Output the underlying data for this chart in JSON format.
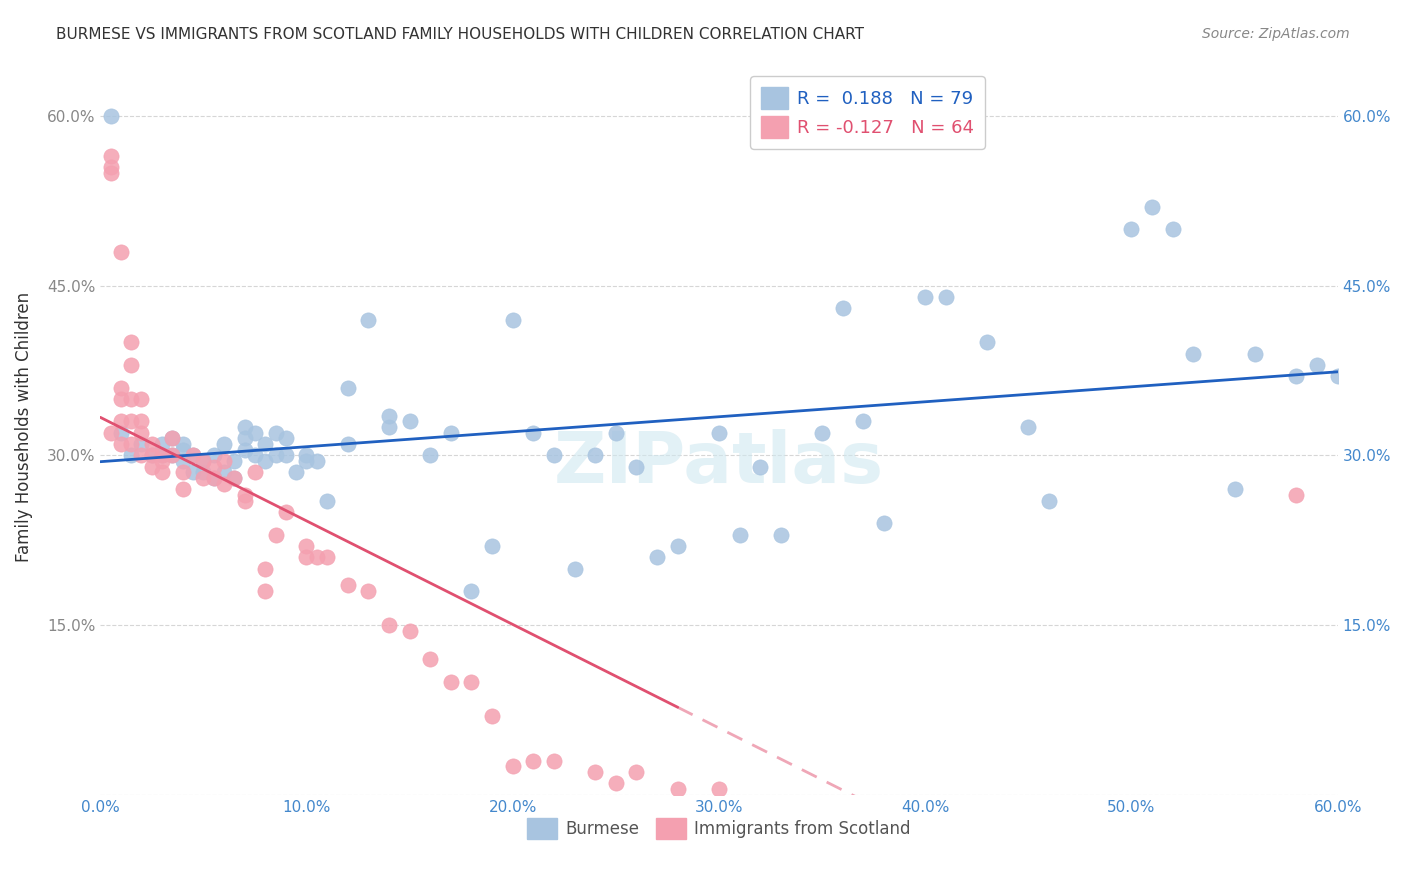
{
  "title": "BURMESE VS IMMIGRANTS FROM SCOTLAND FAMILY HOUSEHOLDS WITH CHILDREN CORRELATION CHART",
  "source": "Source: ZipAtlas.com",
  "xlabel_bottom": "",
  "ylabel": "Family Households with Children",
  "x_ticks": [
    0.0,
    0.1,
    0.2,
    0.3,
    0.4,
    0.5,
    0.6
  ],
  "x_tick_labels": [
    "0.0%",
    "10.0%",
    "20.0%",
    "30.0%",
    "40.0%",
    "50.0%",
    "60.0%"
  ],
  "y_ticks": [
    0.0,
    0.15,
    0.3,
    0.45,
    0.6
  ],
  "y_tick_labels_left": [
    "",
    "15.0%",
    "30.0%",
    "45.0%",
    "60.0%"
  ],
  "y_tick_labels_right": [
    "",
    "15.0%",
    "30.0%",
    "45.0%",
    "60.0%"
  ],
  "xlim": [
    0.0,
    0.6
  ],
  "ylim": [
    0.0,
    0.65
  ],
  "blue_R": 0.188,
  "blue_N": 79,
  "pink_R": -0.127,
  "pink_N": 64,
  "blue_color": "#a8c4e0",
  "pink_color": "#f4a0b0",
  "blue_line_color": "#2060c0",
  "pink_line_color": "#e05070",
  "watermark": "ZIPatlas",
  "legend_label_blue": "Burmese",
  "legend_label_pink": "Immigrants from Scotland",
  "blue_scatter_x": [
    0.005,
    0.01,
    0.015,
    0.02,
    0.025,
    0.03,
    0.03,
    0.035,
    0.035,
    0.04,
    0.04,
    0.04,
    0.045,
    0.045,
    0.05,
    0.05,
    0.055,
    0.055,
    0.06,
    0.06,
    0.065,
    0.065,
    0.07,
    0.07,
    0.07,
    0.075,
    0.075,
    0.08,
    0.08,
    0.085,
    0.085,
    0.09,
    0.09,
    0.095,
    0.1,
    0.1,
    0.105,
    0.11,
    0.12,
    0.12,
    0.13,
    0.14,
    0.14,
    0.15,
    0.16,
    0.17,
    0.18,
    0.19,
    0.2,
    0.21,
    0.22,
    0.23,
    0.24,
    0.25,
    0.26,
    0.27,
    0.28,
    0.3,
    0.31,
    0.32,
    0.33,
    0.35,
    0.36,
    0.37,
    0.38,
    0.4,
    0.41,
    0.43,
    0.45,
    0.46,
    0.5,
    0.51,
    0.52,
    0.53,
    0.55,
    0.56,
    0.58,
    0.59,
    0.6
  ],
  "blue_scatter_y": [
    0.6,
    0.32,
    0.3,
    0.31,
    0.3,
    0.3,
    0.31,
    0.3,
    0.315,
    0.295,
    0.31,
    0.305,
    0.285,
    0.3,
    0.285,
    0.295,
    0.28,
    0.3,
    0.31,
    0.285,
    0.295,
    0.28,
    0.325,
    0.315,
    0.305,
    0.32,
    0.3,
    0.295,
    0.31,
    0.32,
    0.3,
    0.315,
    0.3,
    0.285,
    0.3,
    0.295,
    0.295,
    0.26,
    0.36,
    0.31,
    0.42,
    0.325,
    0.335,
    0.33,
    0.3,
    0.32,
    0.18,
    0.22,
    0.42,
    0.32,
    0.3,
    0.2,
    0.3,
    0.32,
    0.29,
    0.21,
    0.22,
    0.32,
    0.23,
    0.29,
    0.23,
    0.32,
    0.43,
    0.33,
    0.24,
    0.44,
    0.44,
    0.4,
    0.325,
    0.26,
    0.5,
    0.52,
    0.5,
    0.39,
    0.27,
    0.39,
    0.37,
    0.38,
    0.37
  ],
  "pink_scatter_x": [
    0.005,
    0.005,
    0.005,
    0.005,
    0.01,
    0.01,
    0.01,
    0.01,
    0.01,
    0.015,
    0.015,
    0.015,
    0.015,
    0.015,
    0.02,
    0.02,
    0.02,
    0.02,
    0.025,
    0.025,
    0.025,
    0.03,
    0.03,
    0.03,
    0.035,
    0.035,
    0.04,
    0.04,
    0.045,
    0.05,
    0.05,
    0.055,
    0.055,
    0.06,
    0.06,
    0.065,
    0.07,
    0.07,
    0.075,
    0.08,
    0.08,
    0.085,
    0.09,
    0.1,
    0.1,
    0.105,
    0.11,
    0.12,
    0.13,
    0.14,
    0.15,
    0.16,
    0.17,
    0.18,
    0.19,
    0.2,
    0.21,
    0.22,
    0.24,
    0.25,
    0.26,
    0.28,
    0.3,
    0.58
  ],
  "pink_scatter_y": [
    0.565,
    0.555,
    0.55,
    0.32,
    0.48,
    0.36,
    0.35,
    0.33,
    0.31,
    0.4,
    0.38,
    0.35,
    0.33,
    0.31,
    0.35,
    0.33,
    0.32,
    0.3,
    0.31,
    0.3,
    0.29,
    0.3,
    0.295,
    0.285,
    0.315,
    0.3,
    0.285,
    0.27,
    0.3,
    0.295,
    0.28,
    0.29,
    0.28,
    0.295,
    0.275,
    0.28,
    0.265,
    0.26,
    0.285,
    0.2,
    0.18,
    0.23,
    0.25,
    0.22,
    0.21,
    0.21,
    0.21,
    0.185,
    0.18,
    0.15,
    0.145,
    0.12,
    0.1,
    0.1,
    0.07,
    0.025,
    0.03,
    0.03,
    0.02,
    0.01,
    0.02,
    0.005,
    0.005,
    0.265
  ]
}
